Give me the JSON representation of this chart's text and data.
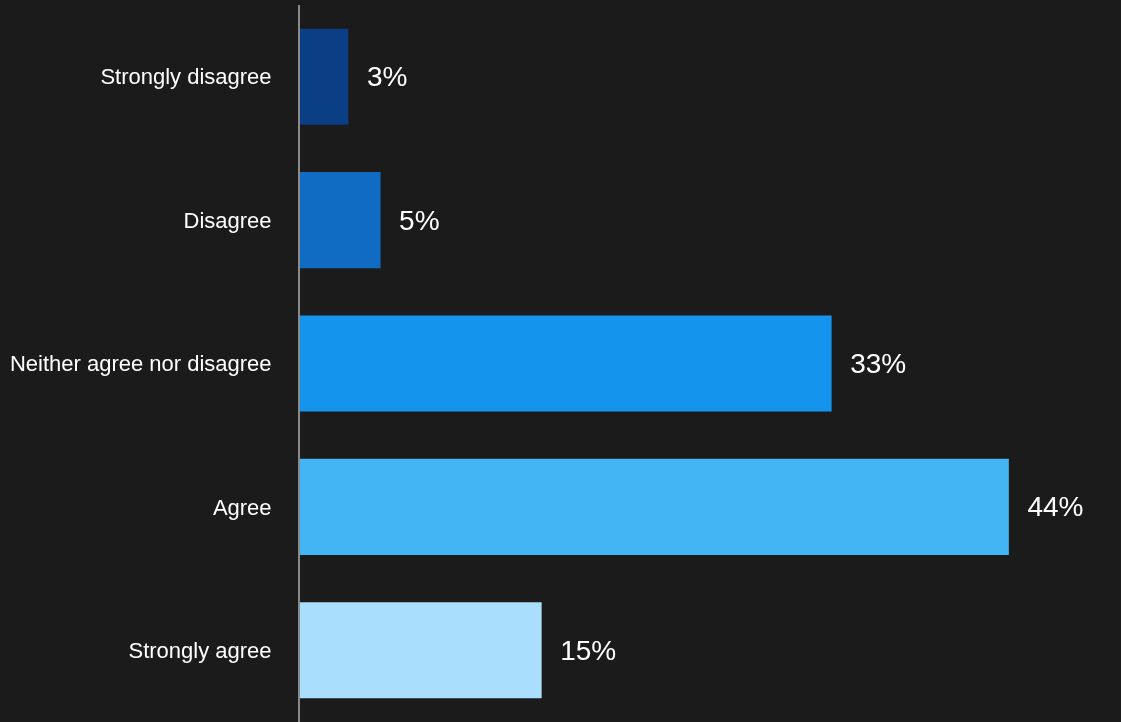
{
  "chart_data": {
    "type": "bar",
    "orientation": "horizontal",
    "categories": [
      "Strongly disagree",
      "Disagree",
      "Neither agree nor disagree",
      "Agree",
      "Strongly agree"
    ],
    "values": [
      3,
      5,
      33,
      44,
      15
    ],
    "value_labels": [
      "3%",
      "5%",
      "33%",
      "44%",
      "15%"
    ],
    "colors": [
      "#0a3f86",
      "#0f6cc2",
      "#1594ee",
      "#43b4f4",
      "#a9dffc"
    ],
    "tick_labels": "y"
  }
}
